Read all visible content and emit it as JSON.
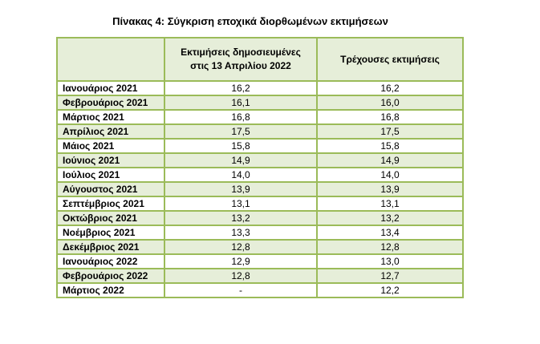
{
  "title": "Πίνακας 4: Σύγκριση εποχικά διορθωμένων εκτιμήσεων",
  "columns": [
    "",
    "Εκτιμήσεις δημοσιευμένες στις 13 Απριλίου 2022",
    "Τρέχουσες εκτιμήσεις"
  ],
  "rows": [
    {
      "label": "Ιανουάριος 2021",
      "published": "16,2",
      "current": "16,2"
    },
    {
      "label": "Φεβρουάριος 2021",
      "published": "16,1",
      "current": "16,0"
    },
    {
      "label": "Μάρτιος 2021",
      "published": "16,8",
      "current": "16,8"
    },
    {
      "label": "Απρίλιος 2021",
      "published": "17,5",
      "current": "17,5"
    },
    {
      "label": "Μάιος 2021",
      "published": "15,8",
      "current": "15,8"
    },
    {
      "label": "Ιούνιος 2021",
      "published": "14,9",
      "current": "14,9"
    },
    {
      "label": "Ιούλιος 2021",
      "published": "14,0",
      "current": "14,0"
    },
    {
      "label": "Αύγουστος 2021",
      "published": "13,9",
      "current": "13,9"
    },
    {
      "label": "Σεπτέμβριος 2021",
      "published": "13,1",
      "current": "13,1"
    },
    {
      "label": "Οκτώβριος 2021",
      "published": "13,2",
      "current": "13,2"
    },
    {
      "label": "Νοέμβριος 2021",
      "published": "13,3",
      "current": "13,4"
    },
    {
      "label": "Δεκέμβριος 2021",
      "published": "12,8",
      "current": "12,8"
    },
    {
      "label": "Ιανουάριος 2022",
      "published": "12,9",
      "current": "13,0"
    },
    {
      "label": "Φεβρουάριος 2022",
      "published": "12,8",
      "current": "12,7"
    },
    {
      "label": "Μάρτιος 2022",
      "published": "-",
      "current": "12,2"
    }
  ]
}
